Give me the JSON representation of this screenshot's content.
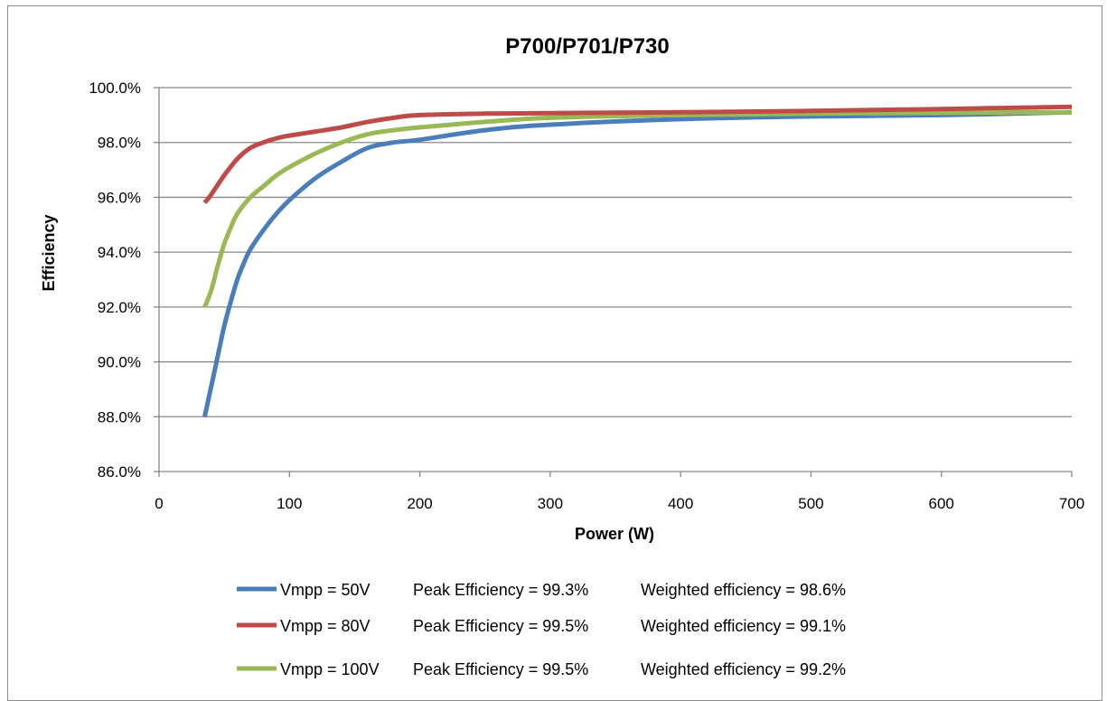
{
  "chart_data": {
    "type": "line",
    "title": "P700/P701/P730",
    "xlabel": "Power (W)",
    "ylabel": "Efficiency",
    "xlim": [
      0,
      700
    ],
    "ylim": [
      86.0,
      100.0
    ],
    "x_ticks": [
      "0",
      "100",
      "200",
      "300",
      "400",
      "500",
      "600",
      "700"
    ],
    "y_ticks": [
      "86.0%",
      "88.0%",
      "90.0%",
      "92.0%",
      "94.0%",
      "96.0%",
      "98.0%",
      "100.0%"
    ],
    "x_tick_values": [
      0,
      100,
      200,
      300,
      400,
      500,
      600,
      700
    ],
    "y_tick_values": [
      86,
      88,
      90,
      92,
      94,
      96,
      98,
      100
    ],
    "grid": "horizontal",
    "legend_position": "bottom",
    "series": [
      {
        "name": "Vmpp = 50V",
        "peak": "Peak Efficiency = 99.3%",
        "weighted": "Weighted efficiency = 98.6%",
        "color": "#4a7ebb",
        "x": [
          35,
          40,
          45,
          50,
          55,
          60,
          65,
          70,
          80,
          90,
          100,
          120,
          140,
          160,
          180,
          200,
          250,
          300,
          400,
          500,
          600,
          700
        ],
        "y": [
          88.0,
          89.1,
          90.2,
          91.3,
          92.2,
          93.0,
          93.6,
          94.1,
          94.8,
          95.4,
          95.9,
          96.7,
          97.3,
          97.8,
          98.0,
          98.1,
          98.45,
          98.65,
          98.85,
          98.95,
          99.0,
          99.1
        ]
      },
      {
        "name": "Vmpp = 80V",
        "peak": "Peak Efficiency = 99.5%",
        "weighted": "Weighted efficiency = 99.1%",
        "color": "#be4b48",
        "x": [
          35,
          40,
          50,
          60,
          70,
          80,
          90,
          100,
          120,
          140,
          160,
          180,
          200,
          250,
          300,
          400,
          500,
          600,
          700
        ],
        "y": [
          95.8,
          96.1,
          96.8,
          97.4,
          97.8,
          98.0,
          98.15,
          98.25,
          98.4,
          98.55,
          98.75,
          98.9,
          99.0,
          99.05,
          99.07,
          99.1,
          99.15,
          99.22,
          99.3
        ]
      },
      {
        "name": "Vmpp = 100V",
        "peak": "Peak Efficiency = 99.5%",
        "weighted": "Weighted efficiency = 99.2%",
        "color": "#98b954",
        "x": [
          35,
          40,
          45,
          50,
          55,
          60,
          70,
          80,
          90,
          100,
          120,
          140,
          160,
          180,
          200,
          250,
          300,
          400,
          500,
          600,
          700
        ],
        "y": [
          92.0,
          92.6,
          93.5,
          94.3,
          94.9,
          95.4,
          96.0,
          96.4,
          96.8,
          97.1,
          97.6,
          98.0,
          98.3,
          98.45,
          98.55,
          98.75,
          98.9,
          99.0,
          99.05,
          99.08,
          99.1
        ]
      }
    ]
  }
}
